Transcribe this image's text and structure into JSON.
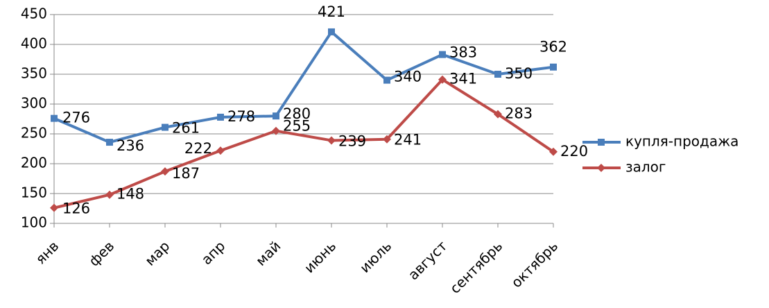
{
  "chart_data": {
    "type": "line",
    "categories": [
      "янв",
      "фев",
      "мар",
      "апр",
      "май",
      "июнь",
      "июль",
      "август",
      "сентябрь",
      "октябрь"
    ],
    "series": [
      {
        "name": "купля-продажа",
        "color": "#4a7ebb",
        "marker": "square",
        "values": [
          276,
          236,
          261,
          278,
          280,
          421,
          340,
          383,
          350,
          362
        ]
      },
      {
        "name": "залог",
        "color": "#be4b48",
        "marker": "diamond",
        "values": [
          126,
          148,
          187,
          222,
          255,
          239,
          241,
          341,
          283,
          220
        ]
      }
    ],
    "ylim": [
      100,
      450
    ],
    "yticks": [
      100,
      150,
      200,
      250,
      300,
      350,
      400,
      450
    ],
    "grid": true,
    "legend": "right"
  }
}
